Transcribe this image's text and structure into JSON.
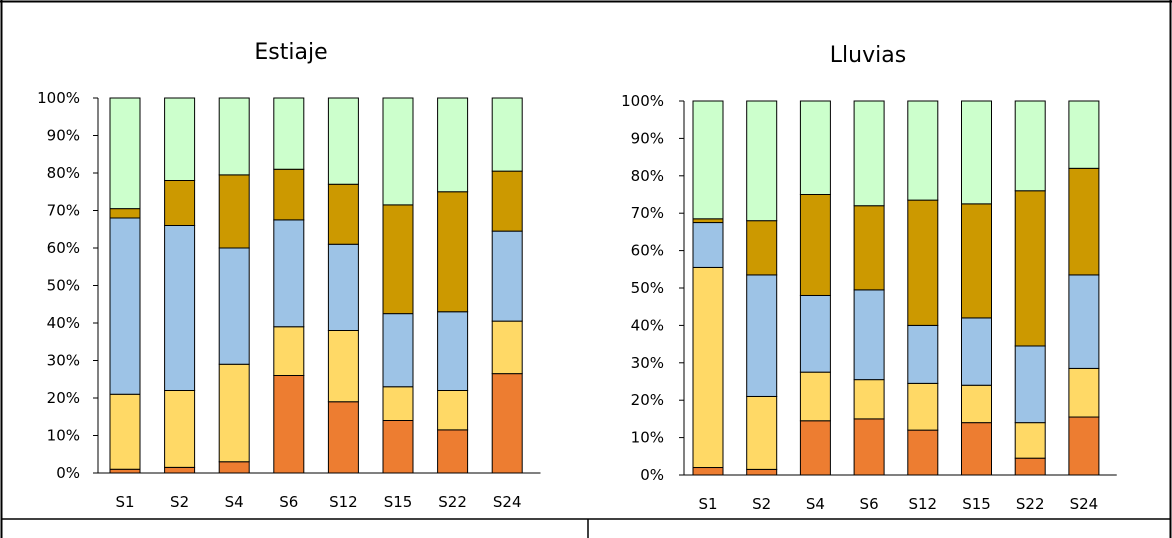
{
  "chart_data": [
    {
      "type": "bar",
      "stacked": "percent",
      "title": "Estiaje",
      "categories": [
        "S1",
        "S2",
        "S4",
        "S6",
        "S12",
        "S15",
        "S22",
        "S24"
      ],
      "y_tick_labels": [
        "0%",
        "10%",
        "20%",
        "30%",
        "40%",
        "50%",
        "60%",
        "70%",
        "80%",
        "90%",
        "100%"
      ],
      "ylim": [
        0,
        100
      ],
      "grid": false,
      "series": [
        {
          "color": "#ED7D31",
          "values": [
            1,
            1.5,
            3,
            26,
            19,
            14,
            11.5,
            26.5
          ]
        },
        {
          "color": "#FFD966",
          "values": [
            20,
            20.5,
            26,
            13,
            19,
            9,
            10.5,
            14
          ]
        },
        {
          "color": "#9DC3E6",
          "values": [
            47,
            44,
            31,
            28.5,
            23,
            19.5,
            21,
            24
          ]
        },
        {
          "color": "#CC9900",
          "values": [
            2.5,
            12,
            19.5,
            13.5,
            16,
            29,
            32,
            16
          ]
        },
        {
          "color": "#CCFFCC",
          "values": [
            29.5,
            22,
            20.5,
            19,
            23,
            28.5,
            25,
            19.5
          ]
        }
      ]
    },
    {
      "type": "bar",
      "stacked": "percent",
      "title": "Lluvias",
      "categories": [
        "S1",
        "S2",
        "S4",
        "S6",
        "S12",
        "S15",
        "S22",
        "S24"
      ],
      "y_tick_labels": [
        "0%",
        "10%",
        "20%",
        "30%",
        "40%",
        "50%",
        "60%",
        "70%",
        "80%",
        "90%",
        "100%"
      ],
      "ylim": [
        0,
        100
      ],
      "grid": false,
      "series": [
        {
          "color": "#ED7D31",
          "values": [
            2,
            1.5,
            14.5,
            15,
            12,
            14,
            4.5,
            15.5
          ]
        },
        {
          "color": "#FFD966",
          "values": [
            53.5,
            19.5,
            13,
            10.5,
            12.5,
            10,
            9.5,
            13
          ]
        },
        {
          "color": "#9DC3E6",
          "values": [
            12,
            32.5,
            20.5,
            24,
            15.5,
            18,
            20.5,
            25
          ]
        },
        {
          "color": "#CC9900",
          "values": [
            1,
            14.5,
            27,
            22.5,
            33.5,
            30.5,
            41.5,
            28.5
          ]
        },
        {
          "color": "#CCFFCC",
          "values": [
            31.5,
            32,
            25,
            28,
            26.5,
            27.5,
            24,
            18
          ]
        }
      ]
    }
  ]
}
